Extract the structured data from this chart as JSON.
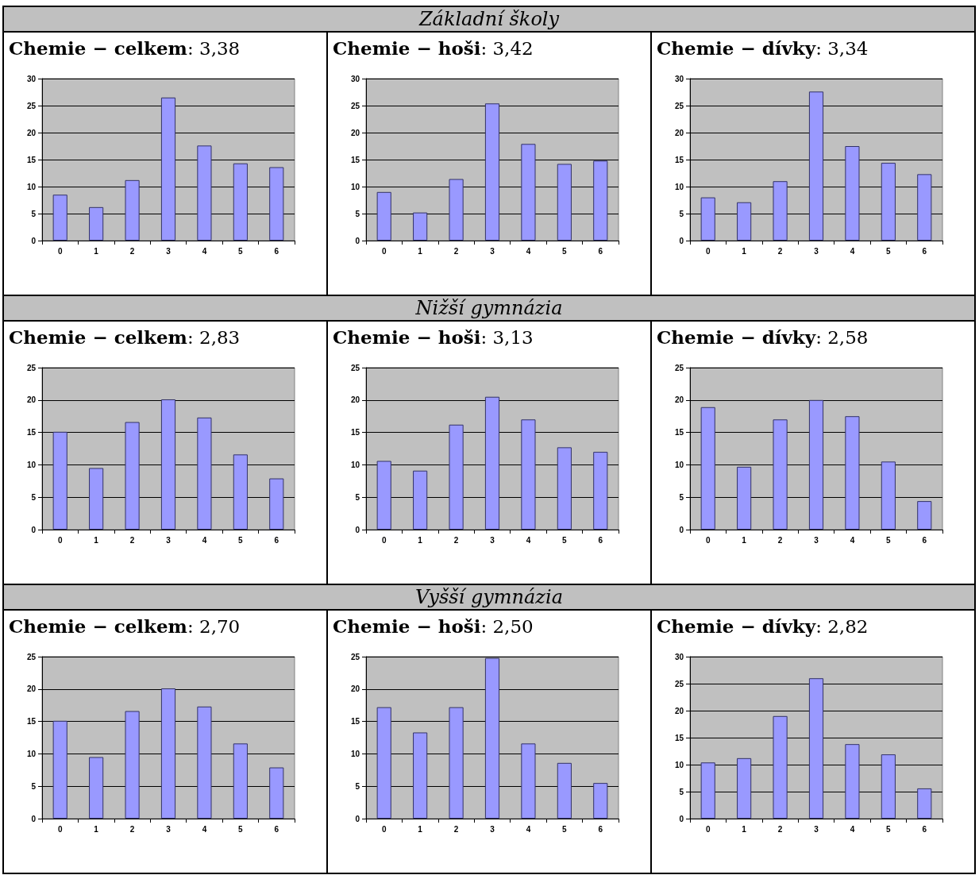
{
  "chart_data": [
    {
      "type": "other",
      "title": "Základní školy"
    },
    {
      "type": "bar",
      "title": "Chemie − celkem: 3,38",
      "categories": [
        "0",
        "1",
        "2",
        "3",
        "4",
        "5",
        "6"
      ],
      "values": [
        8.5,
        6.2,
        11.2,
        26.5,
        17.6,
        14.3,
        13.6
      ],
      "color": "#9999ff",
      "ylim": [
        0,
        30
      ],
      "yticks": [
        0,
        5,
        10,
        15,
        20,
        25,
        30
      ],
      "grid": "y"
    },
    {
      "type": "bar",
      "title": "Chemie − hoši: 3,42",
      "categories": [
        "0",
        "1",
        "2",
        "3",
        "4",
        "5",
        "6"
      ],
      "values": [
        9,
        5.2,
        11.4,
        25.4,
        17.9,
        14.2,
        14.8
      ],
      "color": "#9999ff",
      "ylim": [
        0,
        30
      ],
      "yticks": [
        0,
        5,
        10,
        15,
        20,
        25,
        30
      ],
      "grid": "y"
    },
    {
      "type": "bar",
      "title": "Chemie − dívky: 3,34",
      "categories": [
        "0",
        "1",
        "2",
        "3",
        "4",
        "5",
        "6"
      ],
      "values": [
        8,
        7.1,
        11,
        27.6,
        17.5,
        14.4,
        12.3
      ],
      "color": "#9999ff",
      "ylim": [
        0,
        30
      ],
      "yticks": [
        0,
        5,
        10,
        15,
        20,
        25,
        30
      ],
      "grid": "y"
    },
    {
      "type": "other",
      "title": "Nižší gymnázia"
    },
    {
      "type": "bar",
      "title": "Chemie − celkem: 2,83",
      "categories": [
        "0",
        "1",
        "2",
        "3",
        "4",
        "5",
        "6"
      ],
      "values": [
        15.1,
        9.5,
        16.6,
        20.1,
        17.3,
        11.6,
        7.9
      ],
      "color": "#9999ff",
      "ylim": [
        0,
        25
      ],
      "yticks": [
        0,
        5,
        10,
        15,
        20,
        25
      ],
      "grid": "y"
    },
    {
      "type": "bar",
      "title": "Chemie − hoši: 3,13",
      "categories": [
        "0",
        "1",
        "2",
        "3",
        "4",
        "5",
        "6"
      ],
      "values": [
        10.6,
        9.1,
        16.2,
        20.5,
        17,
        12.7,
        12
      ],
      "color": "#9999ff",
      "ylim": [
        0,
        25
      ],
      "yticks": [
        0,
        5,
        10,
        15,
        20,
        25
      ],
      "grid": "y"
    },
    {
      "type": "bar",
      "title": "Chemie − dívky: 2,58",
      "categories": [
        "0",
        "1",
        "2",
        "3",
        "4",
        "5",
        "6"
      ],
      "values": [
        18.9,
        9.7,
        17,
        20,
        17.5,
        10.5,
        4.4
      ],
      "color": "#9999ff",
      "ylim": [
        0,
        25
      ],
      "yticks": [
        0,
        5,
        10,
        15,
        20,
        25
      ],
      "grid": "y"
    },
    {
      "type": "other",
      "title": "Vyšší gymnázia"
    },
    {
      "type": "bar",
      "title": "Chemie − celkem: 2,70",
      "categories": [
        "0",
        "1",
        "2",
        "3",
        "4",
        "5",
        "6"
      ],
      "values": [
        15.1,
        9.5,
        16.6,
        20.1,
        17.3,
        11.6,
        7.9
      ],
      "color": "#9999ff",
      "ylim": [
        0,
        25
      ],
      "yticks": [
        0,
        5,
        10,
        15,
        20,
        25
      ],
      "grid": "y"
    },
    {
      "type": "bar",
      "title": "Chemie − hoši: 2,50",
      "categories": [
        "0",
        "1",
        "2",
        "3",
        "4",
        "5",
        "6"
      ],
      "values": [
        17.2,
        13.3,
        17.2,
        24.8,
        11.6,
        8.6,
        5.5
      ],
      "color": "#9999ff",
      "ylim": [
        0,
        25
      ],
      "yticks": [
        0,
        5,
        10,
        15,
        20,
        25
      ],
      "grid": "y"
    },
    {
      "type": "bar",
      "title": "Chemie − dívky: 2,82",
      "categories": [
        "0",
        "1",
        "2",
        "3",
        "4",
        "5",
        "6"
      ],
      "values": [
        10.4,
        11.2,
        19,
        26,
        13.8,
        11.9,
        5.6
      ],
      "color": "#9999ff",
      "ylim": [
        0,
        30
      ],
      "yticks": [
        0,
        5,
        10,
        15,
        20,
        25,
        30
      ],
      "grid": "y"
    }
  ]
}
